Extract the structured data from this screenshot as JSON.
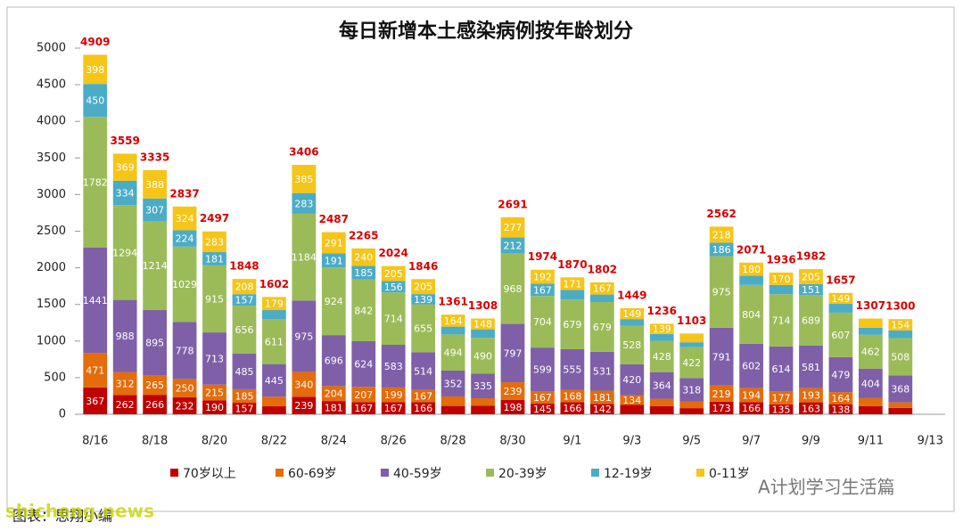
{
  "chart_data": {
    "type": "stacked_bar",
    "title": "每日新增本土感染病例按年龄划分",
    "categories": [
      "8/16",
      null,
      "8/18",
      null,
      "8/20",
      null,
      "8/22",
      null,
      "8/24",
      null,
      "8/26",
      null,
      "8/28",
      null,
      "8/30",
      null,
      "9/1",
      null,
      "9/3",
      null,
      "9/5",
      null,
      "9/7",
      null,
      "9/9",
      null,
      "9/11",
      null,
      "9/13"
    ],
    "series": [
      {
        "name": "70岁以上",
        "color": "#c00000",
        "values": [
          367,
          262,
          266,
          232,
          190,
          157,
          109,
          239,
          181,
          167,
          167,
          166,
          114,
          116,
          198,
          145,
          166,
          142,
          128,
          113,
          84,
          173,
          166,
          135,
          163,
          138,
          110,
          87,
          null
        ]
      },
      {
        "name": "60-69岁",
        "color": "#e46c0a",
        "values": [
          471,
          312,
          265,
          250,
          215,
          185,
          132,
          340,
          204,
          207,
          199,
          167,
          130,
          103,
          239,
          167,
          168,
          181,
          134,
          99,
          92,
          219,
          194,
          177,
          193,
          164,
          110,
          76,
          null
        ]
      },
      {
        "name": "40-59岁",
        "color": "#7f5fa8",
        "values": [
          1441,
          988,
          895,
          778,
          713,
          485,
          445,
          975,
          696,
          624,
          583,
          514,
          352,
          335,
          797,
          599,
          555,
          531,
          420,
          364,
          318,
          791,
          602,
          614,
          581,
          479,
          404,
          368,
          null
        ]
      },
      {
        "name": "20-39岁",
        "color": "#9bbb59",
        "values": [
          1782,
          1294,
          1214,
          1029,
          915,
          656,
          611,
          1184,
          924,
          842,
          714,
          655,
          494,
          490,
          968,
          704,
          679,
          679,
          528,
          428,
          422,
          975,
          804,
          714,
          689,
          607,
          462,
          508,
          null
        ]
      },
      {
        "name": "12-19岁",
        "color": "#4bacc6",
        "values": [
          450,
          334,
          307,
          224,
          181,
          157,
          126,
          283,
          191,
          185,
          156,
          139,
          107,
          116,
          212,
          167,
          131,
          102,
          90,
          93,
          67,
          186,
          125,
          126,
          151,
          120,
          95,
          107,
          null
        ]
      },
      {
        "name": "0-11岁",
        "color": "#f5c518",
        "values": [
          398,
          369,
          388,
          324,
          283,
          208,
          179,
          385,
          291,
          240,
          205,
          205,
          164,
          148,
          277,
          192,
          171,
          167,
          149,
          139,
          120,
          218,
          180,
          170,
          205,
          149,
          126,
          154,
          null
        ]
      }
    ],
    "totals": [
      4909,
      3559,
      3335,
      2837,
      2497,
      1848,
      1602,
      3406,
      2487,
      2265,
      2024,
      1846,
      1361,
      1308,
      2691,
      1974,
      1870,
      1802,
      1449,
      1236,
      1103,
      2562,
      2071,
      1936,
      1982,
      1657,
      1307,
      1300,
      null
    ],
    "ylim": [
      0,
      5000
    ],
    "yticks": [
      0,
      500,
      1000,
      1500,
      2000,
      2500,
      3000,
      3500,
      4000,
      4500,
      5000
    ],
    "legend": "bottom",
    "source": "图表：思翔小编",
    "watermark": "A计划学习生活篇",
    "site": "shicheng.news"
  }
}
